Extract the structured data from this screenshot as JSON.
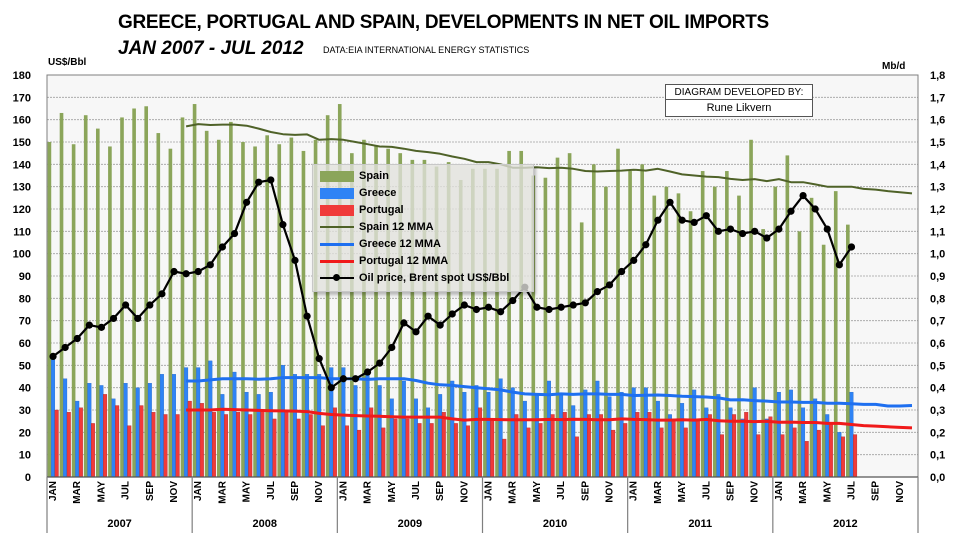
{
  "header": {
    "title": "GREECE, PORTUGAL AND SPAIN, DEVELOPMENTS IN NET OIL IMPORTS",
    "subtitle": "JAN 2007 - JUL 2012",
    "source": "DATA:EIA INTERNATIONAL ENERGY STATISTICS",
    "credit_line1": "DIAGRAM DEVELOPED BY:",
    "credit_line2": "Rune Likvern"
  },
  "colors": {
    "spain": "#8ba55a",
    "greece": "#2f83f5",
    "portugal": "#f03a3a",
    "spain_mma": "#4f6228",
    "greece_mma": "#1e6ff0",
    "portugal_mma": "#f01a1a",
    "oil": "#000000"
  },
  "chart_data": {
    "type": "bar",
    "title": "GREECE, PORTUGAL AND SPAIN, DEVELOPMENTS IN NET OIL IMPORTS",
    "subtitle": "JAN 2007 - JUL 2012",
    "ylabel": "US$/Bbl",
    "y2label": "Mb/d",
    "ylim": [
      0,
      180
    ],
    "y2lim": [
      0,
      1.8
    ],
    "yticks": [
      "0",
      "10",
      "20",
      "30",
      "40",
      "50",
      "60",
      "70",
      "80",
      "90",
      "100",
      "110",
      "120",
      "130",
      "140",
      "150",
      "160",
      "170",
      "180"
    ],
    "y2ticks": [
      "0,0",
      "0,1",
      "0,2",
      "0,3",
      "0,4",
      "0,5",
      "0,6",
      "0,7",
      "0,8",
      "0,9",
      "1,0",
      "1,1",
      "1,2",
      "1,3",
      "1,4",
      "1,5",
      "1,6",
      "1,7",
      "1,8"
    ],
    "grid": true,
    "legend_position": "center-left",
    "month_labels": [
      "JAN",
      "MAR",
      "MAY",
      "JUL",
      "SEP",
      "NOV"
    ],
    "years": [
      "2007",
      "2008",
      "2009",
      "2010",
      "2011",
      "2012"
    ],
    "months_total": 72,
    "series": [
      {
        "name": "Spain",
        "kind": "bar",
        "axis": "right",
        "values": [
          1.5,
          1.63,
          1.49,
          1.62,
          1.56,
          1.48,
          1.61,
          1.65,
          1.66,
          1.54,
          1.47,
          1.61,
          1.67,
          1.55,
          1.51,
          1.59,
          1.5,
          1.48,
          1.53,
          1.49,
          1.52,
          1.46,
          1.51,
          1.62,
          1.67,
          1.45,
          1.51,
          1.48,
          1.47,
          1.45,
          1.42,
          1.42,
          1.39,
          1.41,
          1.33,
          1.38,
          1.38,
          1.38,
          1.46,
          1.46,
          1.35,
          1.34,
          1.43,
          1.45,
          1.14,
          1.4,
          1.3,
          1.47,
          1.37,
          1.4,
          1.26,
          1.3,
          1.27,
          1.19,
          1.37,
          1.3,
          1.37,
          1.26,
          1.51,
          1.11,
          1.3,
          1.44,
          1.1,
          1.25,
          1.04,
          1.28,
          1.13
        ]
      },
      {
        "name": "Greece",
        "kind": "bar",
        "axis": "right",
        "values": [
          0.53,
          0.44,
          0.34,
          0.42,
          0.41,
          0.35,
          0.42,
          0.4,
          0.42,
          0.46,
          0.46,
          0.49,
          0.49,
          0.52,
          0.37,
          0.47,
          0.38,
          0.37,
          0.38,
          0.5,
          0.46,
          0.46,
          0.46,
          0.49,
          0.49,
          0.41,
          0.48,
          0.41,
          0.35,
          0.43,
          0.35,
          0.31,
          0.37,
          0.43,
          0.38,
          0.41,
          0.38,
          0.44,
          0.4,
          0.34,
          0.37,
          0.43,
          0.37,
          0.32,
          0.39,
          0.43,
          0.36,
          0.38,
          0.4,
          0.4,
          0.34,
          0.28,
          0.33,
          0.39,
          0.31,
          0.37,
          0.31,
          0.26,
          0.4,
          0.26,
          0.38,
          0.39,
          0.31,
          0.35,
          0.28,
          0.2,
          0.38
        ]
      },
      {
        "name": "Portugal",
        "kind": "bar",
        "axis": "right",
        "values": [
          0.3,
          0.29,
          0.31,
          0.24,
          0.37,
          0.32,
          0.23,
          0.32,
          0.29,
          0.28,
          0.28,
          0.34,
          0.33,
          0.29,
          0.28,
          0.29,
          0.28,
          0.3,
          0.26,
          0.29,
          0.26,
          0.28,
          0.23,
          0.31,
          0.23,
          0.21,
          0.31,
          0.22,
          0.26,
          0.26,
          0.24,
          0.24,
          0.29,
          0.24,
          0.23,
          0.31,
          0.26,
          0.17,
          0.28,
          0.22,
          0.24,
          0.28,
          0.29,
          0.18,
          0.28,
          0.28,
          0.21,
          0.24,
          0.29,
          0.29,
          0.22,
          0.26,
          0.22,
          0.25,
          0.28,
          0.19,
          0.28,
          0.29,
          0.19,
          0.27,
          0.19,
          0.22,
          0.16,
          0.21,
          0.24,
          0.18,
          0.19
        ]
      },
      {
        "name": "Spain 12 MMA",
        "kind": "line",
        "axis": "right",
        "start_index": 11,
        "values": [
          1.57,
          1.58,
          1.576,
          1.578,
          1.578,
          1.573,
          1.56,
          1.545,
          1.535,
          1.532,
          1.534,
          1.51,
          1.513,
          1.51,
          1.5,
          1.49,
          1.48,
          1.478,
          1.47,
          1.46,
          1.455,
          1.447,
          1.435,
          1.425,
          1.41,
          1.41,
          1.4,
          1.385,
          1.385,
          1.387,
          1.383,
          1.385,
          1.38,
          1.37,
          1.368,
          1.37,
          1.372,
          1.376,
          1.372,
          1.38,
          1.368,
          1.355,
          1.35,
          1.345,
          1.343,
          1.335,
          1.33,
          1.334,
          1.325,
          1.334,
          1.32,
          1.32,
          1.31,
          1.3,
          1.3,
          1.3,
          1.29,
          1.287,
          1.28,
          1.275,
          1.27
        ]
      },
      {
        "name": "Greece 12 MMA",
        "kind": "line",
        "axis": "right",
        "start_index": 11,
        "values": [
          0.43,
          0.43,
          0.435,
          0.44,
          0.44,
          0.44,
          0.438,
          0.44,
          0.445,
          0.445,
          0.445,
          0.445,
          0.44,
          0.44,
          0.44,
          0.437,
          0.44,
          0.44,
          0.44,
          0.432,
          0.42,
          0.413,
          0.41,
          0.405,
          0.4,
          0.395,
          0.39,
          0.38,
          0.372,
          0.37,
          0.368,
          0.372,
          0.37,
          0.372,
          0.372,
          0.37,
          0.37,
          0.365,
          0.366,
          0.367,
          0.365,
          0.362,
          0.36,
          0.358,
          0.354,
          0.345,
          0.346,
          0.342,
          0.34,
          0.336,
          0.336,
          0.334,
          0.334,
          0.33,
          0.33,
          0.328,
          0.325,
          0.325,
          0.318,
          0.318,
          0.32
        ]
      },
      {
        "name": "Portugal 12 MMA",
        "kind": "line",
        "axis": "right",
        "start_index": 11,
        "values": [
          0.3,
          0.3,
          0.3,
          0.303,
          0.302,
          0.3,
          0.298,
          0.297,
          0.296,
          0.295,
          0.293,
          0.285,
          0.28,
          0.277,
          0.275,
          0.273,
          0.272,
          0.27,
          0.268,
          0.268,
          0.268,
          0.268,
          0.26,
          0.255,
          0.258,
          0.258,
          0.257,
          0.256,
          0.256,
          0.256,
          0.258,
          0.257,
          0.259,
          0.258,
          0.256,
          0.256,
          0.26,
          0.258,
          0.257,
          0.255,
          0.255,
          0.256,
          0.255,
          0.258,
          0.252,
          0.25,
          0.25,
          0.248,
          0.25,
          0.245,
          0.246,
          0.244,
          0.244,
          0.24,
          0.24,
          0.235,
          0.23,
          0.228,
          0.225,
          0.222,
          0.22
        ]
      },
      {
        "name": "Oil price, Brent spot US$/Bbl",
        "kind": "line",
        "axis": "left",
        "markers": true,
        "values": [
          54,
          58,
          62,
          68,
          67,
          71,
          77,
          71,
          77,
          82,
          92,
          91,
          92,
          95,
          103,
          109,
          123,
          132,
          133,
          113,
          97,
          72,
          53,
          40,
          44,
          44,
          47,
          51,
          58,
          69,
          65,
          72,
          68,
          73,
          77,
          75,
          76,
          74,
          79,
          85,
          76,
          75,
          76,
          77,
          78,
          83,
          86,
          92,
          97,
          104,
          115,
          123,
          115,
          114,
          117,
          110,
          111,
          109,
          110,
          107,
          111,
          119,
          126,
          120,
          111,
          95,
          103
        ]
      }
    ]
  },
  "legend": {
    "items": [
      "Spain",
      "Greece",
      "Portugal",
      "Spain 12 MMA",
      "Greece 12 MMA",
      "Portugal 12 MMA",
      "Oil price, Brent spot US$/Bbl"
    ]
  }
}
